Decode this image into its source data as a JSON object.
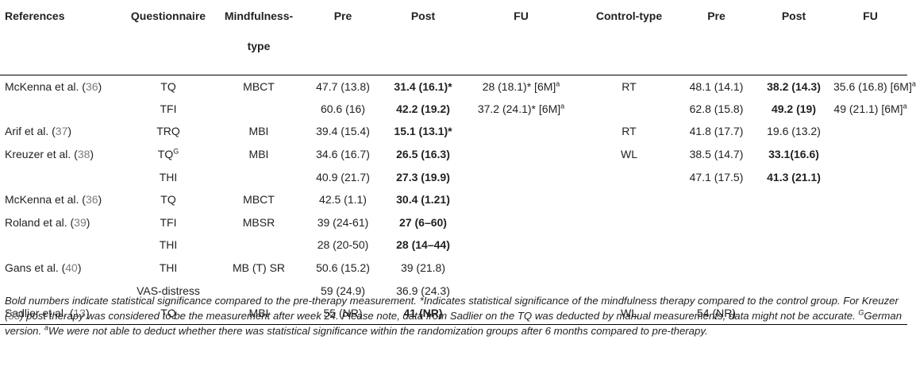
{
  "table": {
    "headers": {
      "references": "References",
      "questionnaire": "Questionnaire",
      "mindfulness_type_line1": "Mindfulness-",
      "mindfulness_type_line2": "type",
      "pre": "Pre",
      "post": "Post",
      "fu": "FU",
      "control_type": "Control-type",
      "control_pre": "Pre",
      "control_post": "Post",
      "control_fu": "FU"
    },
    "rows": [
      {
        "ref_name": "McKenna et al. (",
        "ref_num": "36",
        "ref_close": ")",
        "q": "TQ",
        "q_sup": "",
        "mtype": "MBCT",
        "pre": "47.7 (13.8)",
        "post": "31.4 (16.1)*",
        "post_bold": true,
        "fu": "28 (18.1)* [6M]",
        "fu_sup": "a",
        "ctype": "RT",
        "cpre": "48.1 (14.1)",
        "cpost": "38.2 (14.3)",
        "cpost_bold": true,
        "cfu": "35.6 (16.8) [6M]",
        "cfu_sup": "a"
      },
      {
        "ref_name": "",
        "ref_num": "",
        "ref_close": "",
        "q": "TFI",
        "q_sup": "",
        "mtype": "",
        "pre": "60.6 (16)",
        "post": "42.2 (19.2)",
        "post_bold": true,
        "fu": "37.2 (24.1)* [6M]",
        "fu_sup": "a",
        "ctype": "",
        "cpre": "62.8 (15.8)",
        "cpost": "49.2 (19)",
        "cpost_bold": true,
        "cfu": "49 (21.1) [6M]",
        "cfu_sup": "a"
      },
      {
        "ref_name": "Arif et al. (",
        "ref_num": "37",
        "ref_close": ")",
        "q": "TRQ",
        "q_sup": "",
        "mtype": "MBI",
        "pre": "39.4 (15.4)",
        "post": "15.1 (13.1)*",
        "post_bold": true,
        "fu": "",
        "fu_sup": "",
        "ctype": "RT",
        "cpre": "41.8 (17.7)",
        "cpost": "19.6 (13.2)",
        "cpost_bold": false,
        "cfu": "",
        "cfu_sup": ""
      },
      {
        "ref_name": "Kreuzer et al. (",
        "ref_num": "38",
        "ref_close": ")",
        "q": "TQ",
        "q_sup": "G",
        "mtype": "MBI",
        "pre": "34.6 (16.7)",
        "post": "26.5 (16.3)",
        "post_bold": true,
        "fu": "",
        "fu_sup": "",
        "ctype": "WL",
        "cpre": "38.5 (14.7)",
        "cpost": "33.1(16.6)",
        "cpost_bold": true,
        "cfu": "",
        "cfu_sup": ""
      },
      {
        "ref_name": "",
        "ref_num": "",
        "ref_close": "",
        "q": "THI",
        "q_sup": "",
        "mtype": "",
        "pre": "40.9 (21.7)",
        "post": "27.3 (19.9)",
        "post_bold": true,
        "fu": "",
        "fu_sup": "",
        "ctype": "",
        "cpre": "47.1 (17.5)",
        "cpost": "41.3 (21.1)",
        "cpost_bold": true,
        "cfu": "",
        "cfu_sup": ""
      },
      {
        "ref_name": "McKenna et al. (",
        "ref_num": "36",
        "ref_close": ")",
        "q": "TQ",
        "q_sup": "",
        "mtype": "MBCT",
        "pre": "42.5 (1.1)",
        "post": "30.4 (1.21)",
        "post_bold": true,
        "fu": "",
        "fu_sup": "",
        "ctype": "",
        "cpre": "",
        "cpost": "",
        "cpost_bold": false,
        "cfu": "",
        "cfu_sup": ""
      },
      {
        "ref_name": "Roland et al. (",
        "ref_num": "39",
        "ref_close": ")",
        "q": "TFI",
        "q_sup": "",
        "mtype": "MBSR",
        "pre": "39 (24-61)",
        "post": "27 (6–60)",
        "post_bold": true,
        "fu": "",
        "fu_sup": "",
        "ctype": "",
        "cpre": "",
        "cpost": "",
        "cpost_bold": false,
        "cfu": "",
        "cfu_sup": ""
      },
      {
        "ref_name": "",
        "ref_num": "",
        "ref_close": "",
        "q": "THI",
        "q_sup": "",
        "mtype": "",
        "pre": "28 (20-50)",
        "post": "28 (14–44)",
        "post_bold": true,
        "fu": "",
        "fu_sup": "",
        "ctype": "",
        "cpre": "",
        "cpost": "",
        "cpost_bold": false,
        "cfu": "",
        "cfu_sup": ""
      },
      {
        "ref_name": "Gans et al. (",
        "ref_num": "40",
        "ref_close": ")",
        "q": "THI",
        "q_sup": "",
        "mtype": "MB (T) SR",
        "pre": "50.6 (15.2)",
        "post": "39 (21.8)",
        "post_bold": false,
        "fu": "",
        "fu_sup": "",
        "ctype": "",
        "cpre": "",
        "cpost": "",
        "cpost_bold": false,
        "cfu": "",
        "cfu_sup": ""
      },
      {
        "ref_name": "",
        "ref_num": "",
        "ref_close": "",
        "q": "VAS-distress",
        "q_sup": "",
        "mtype": "",
        "pre": "59 (24.9)",
        "post": "36.9 (24.3)",
        "post_bold": false,
        "fu": "",
        "fu_sup": "",
        "ctype": "",
        "cpre": "",
        "cpost": "",
        "cpost_bold": false,
        "cfu": "",
        "cfu_sup": ""
      },
      {
        "ref_name": "Sadlier et al. (",
        "ref_num": "13",
        "ref_close": ")",
        "q": "TQ",
        "q_sup": "",
        "mtype": "MBI",
        "pre": "55 (NR)",
        "post": "41 (NR)",
        "post_bold": true,
        "fu": "",
        "fu_sup": "",
        "ctype": "WL",
        "cpre": "54 (NR)",
        "cpost": "",
        "cpost_bold": false,
        "cfu": "",
        "cfu_sup": ""
      }
    ]
  },
  "footnote": {
    "part1": "Bold numbers indicate statistical significance compared to the pre-therapy measurement. *Indicates statistical significance of the mindfulness therapy compared to the control group. For Kreuzer (",
    "ref_num": "38",
    "part2": ") post therapy was considered to be the measurement after week 24. Please note, data from Sadlier on the TQ was deducted by manual measurements, data might not be accurate. ",
    "sup_g": "G",
    "part3": "German version. ",
    "sup_a": "a",
    "part4": "We were not able to deduct whether there was statistical significance within the randomization groups after 6 months compared to pre-therapy."
  },
  "style": {
    "ref_color": "#7b7b7b",
    "text_color": "#222222"
  }
}
